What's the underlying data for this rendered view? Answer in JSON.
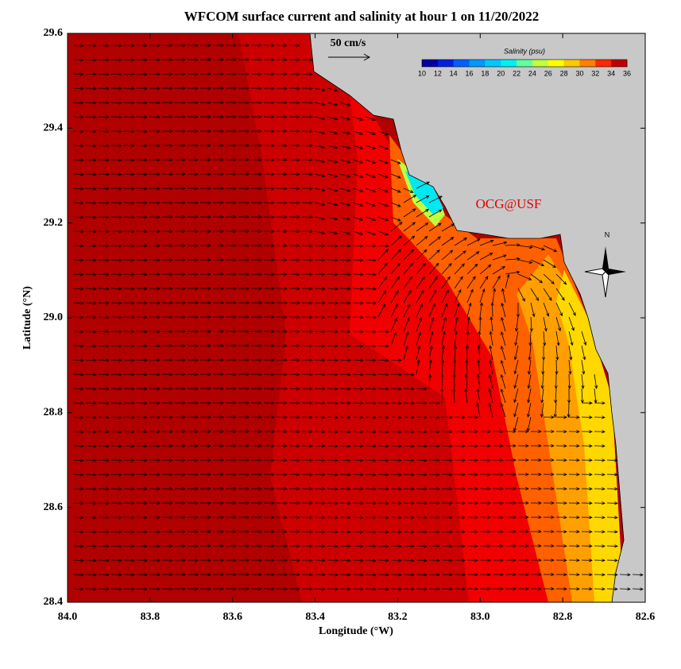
{
  "map": {
    "title": "WFCOM surface current and salinity at hour 1 on 11/20/2022",
    "x_axis": {
      "label": "Longitude (°W)",
      "lim": [
        84.0,
        82.6
      ],
      "ticks": [
        {
          "value": 84.0,
          "label": "84.0"
        },
        {
          "value": 83.8,
          "label": "83.8"
        },
        {
          "value": 83.6,
          "label": "83.6"
        },
        {
          "value": 83.4,
          "label": "83.4"
        },
        {
          "value": 83.2,
          "label": "83.2"
        },
        {
          "value": 83.0,
          "label": "83.0"
        },
        {
          "value": 82.8,
          "label": "82.8"
        },
        {
          "value": 82.6,
          "label": "82.6"
        }
      ]
    },
    "y_axis": {
      "label": "Latitude (°N)",
      "lim": [
        28.4,
        29.6
      ],
      "ticks": [
        {
          "value": 28.4,
          "label": "28.4"
        },
        {
          "value": 28.6,
          "label": "28.6"
        },
        {
          "value": 28.8,
          "label": "28.8"
        },
        {
          "value": 29.0,
          "label": "29.0"
        },
        {
          "value": 29.2,
          "label": "29.2"
        },
        {
          "value": 29.4,
          "label": "29.4"
        },
        {
          "value": 29.6,
          "label": "29.6"
        }
      ]
    },
    "scale_label": "50 cm/s",
    "colorbar": {
      "title": "Salinity (psu)",
      "ticks": [
        10,
        12,
        14,
        16,
        18,
        20,
        22,
        24,
        26,
        28,
        30,
        32,
        34,
        36
      ],
      "colors": [
        "#0000a0",
        "#0020e0",
        "#0060ff",
        "#0098ff",
        "#00c8ff",
        "#00f0f0",
        "#60ffa0",
        "#c0ff40",
        "#ffff00",
        "#ffc800",
        "#ff8000",
        "#ff2800",
        "#c00000"
      ]
    },
    "credit": "OCG@USF",
    "compass": "N"
  }
}
